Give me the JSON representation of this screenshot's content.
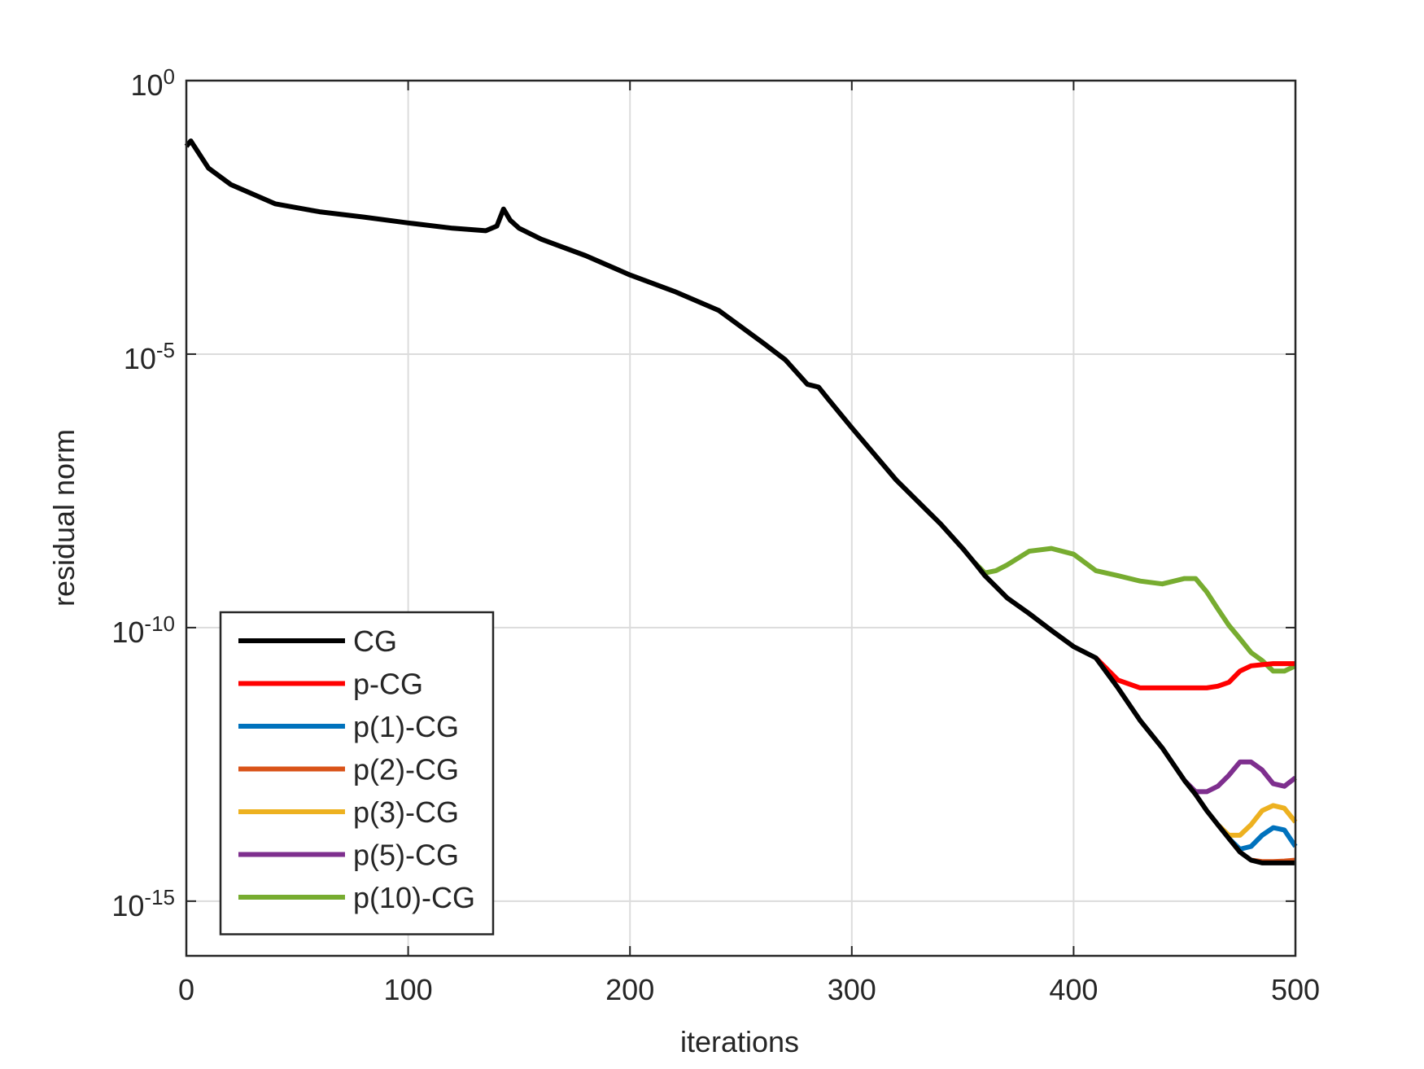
{
  "chart_data": {
    "type": "line",
    "xlabel": "iterations",
    "ylabel": "residual norm",
    "yscale": "log",
    "grid": true,
    "legend_loc": "lower left",
    "xlim": [
      0,
      500
    ],
    "xticks": [
      0,
      100,
      200,
      300,
      400,
      500
    ],
    "ylim": [
      1e-16,
      1
    ],
    "yticks": [
      {
        "value": 1e-15,
        "label": "10^-15"
      },
      {
        "value": 1e-10,
        "label": "10^-10"
      },
      {
        "value": 1e-05,
        "label": "10^-5"
      },
      {
        "value": 1,
        "label": "10^0"
      }
    ],
    "x": [
      0,
      2,
      10,
      20,
      40,
      60,
      80,
      100,
      120,
      135,
      140,
      143,
      146,
      150,
      160,
      180,
      200,
      220,
      240,
      260,
      270,
      280,
      285,
      290,
      300,
      320,
      340,
      350,
      355,
      360,
      365,
      370,
      380,
      390,
      400,
      410,
      420,
      430,
      440,
      450,
      455,
      460,
      465,
      470,
      475,
      480,
      485,
      490,
      495,
      500
    ],
    "series": [
      {
        "name": "CG",
        "color": "#000000",
        "values": [
          0.063,
          0.079,
          0.025,
          0.0126,
          0.0056,
          0.004,
          0.0032,
          0.0025,
          0.002,
          0.0018,
          0.0022,
          0.0045,
          0.0028,
          0.002,
          0.00126,
          0.00063,
          0.00028,
          0.00014,
          6.3e-05,
          1.6e-05,
          7.9e-06,
          2.8e-06,
          2.5e-06,
          1.4e-06,
          4.5e-07,
          5e-08,
          7.9e-09,
          2.8e-09,
          1.6e-09,
          8.9e-10,
          5.6e-10,
          3.5e-10,
          1.8e-10,
          8.9e-11,
          4.5e-11,
          2.8e-11,
          7.9e-12,
          2e-12,
          6.3e-13,
          1.6e-13,
          8.9e-14,
          4.5e-14,
          2.5e-14,
          1.4e-14,
          7.9e-15,
          5.6e-15,
          5e-15,
          5e-15,
          5e-15,
          5e-15
        ]
      },
      {
        "name": "p-CG",
        "color": "#ff0000",
        "values": [
          null,
          null,
          null,
          null,
          null,
          null,
          null,
          null,
          null,
          null,
          null,
          null,
          null,
          null,
          null,
          null,
          null,
          null,
          null,
          null,
          null,
          null,
          null,
          null,
          null,
          null,
          null,
          null,
          null,
          null,
          null,
          null,
          null,
          null,
          null,
          2.8e-11,
          1.1e-11,
          7.9e-12,
          7.9e-12,
          7.9e-12,
          7.9e-12,
          7.9e-12,
          8.5e-12,
          1e-11,
          1.6e-11,
          2e-11,
          2.1e-11,
          2.2e-11,
          2.2e-11,
          2.2e-11
        ]
      },
      {
        "name": "p(1)-CG",
        "color": "#0072bd",
        "values": [
          null,
          null,
          null,
          null,
          null,
          null,
          null,
          null,
          null,
          null,
          null,
          null,
          null,
          null,
          null,
          null,
          null,
          null,
          null,
          null,
          null,
          null,
          null,
          null,
          null,
          null,
          null,
          null,
          null,
          null,
          null,
          null,
          null,
          null,
          null,
          null,
          null,
          null,
          null,
          null,
          null,
          null,
          null,
          1.4e-14,
          8.9e-15,
          1e-14,
          1.6e-14,
          2.2e-14,
          2e-14,
          1e-14
        ]
      },
      {
        "name": "p(2)-CG",
        "color": "#d95319",
        "values": [
          null,
          null,
          null,
          null,
          null,
          null,
          null,
          null,
          null,
          null,
          null,
          null,
          null,
          null,
          null,
          null,
          null,
          null,
          null,
          null,
          null,
          null,
          null,
          null,
          null,
          null,
          null,
          null,
          null,
          null,
          null,
          null,
          null,
          null,
          null,
          null,
          null,
          null,
          null,
          null,
          null,
          null,
          null,
          null,
          null,
          5.6e-15,
          5.3e-15,
          5.3e-15,
          5.4e-15,
          5.6e-15
        ]
      },
      {
        "name": "p(3)-CG",
        "color": "#edb120",
        "values": [
          null,
          null,
          null,
          null,
          null,
          null,
          null,
          null,
          null,
          null,
          null,
          null,
          null,
          null,
          null,
          null,
          null,
          null,
          null,
          null,
          null,
          null,
          null,
          null,
          null,
          null,
          null,
          null,
          null,
          null,
          null,
          null,
          null,
          null,
          null,
          null,
          null,
          null,
          null,
          null,
          null,
          null,
          2.5e-14,
          1.6e-14,
          1.6e-14,
          2.5e-14,
          4.5e-14,
          5.6e-14,
          5e-14,
          2.8e-14
        ]
      },
      {
        "name": "p(5)-CG",
        "color": "#7e2f8e",
        "values": [
          null,
          null,
          null,
          null,
          null,
          null,
          null,
          null,
          null,
          null,
          null,
          null,
          null,
          null,
          null,
          null,
          null,
          null,
          null,
          null,
          null,
          null,
          null,
          null,
          null,
          null,
          null,
          null,
          null,
          null,
          null,
          null,
          null,
          null,
          null,
          null,
          null,
          null,
          null,
          1.6e-13,
          1e-13,
          1e-13,
          1.26e-13,
          2e-13,
          3.5e-13,
          3.5e-13,
          2.5e-13,
          1.4e-13,
          1.26e-13,
          1.8e-13
        ]
      },
      {
        "name": "p(10)-CG",
        "color": "#77ac30",
        "values": [
          null,
          null,
          null,
          null,
          null,
          null,
          null,
          null,
          null,
          null,
          null,
          null,
          null,
          null,
          null,
          null,
          null,
          null,
          null,
          null,
          null,
          null,
          null,
          null,
          null,
          null,
          null,
          null,
          1.6e-09,
          1e-09,
          1.1e-09,
          1.4e-09,
          2.5e-09,
          2.8e-09,
          2.2e-09,
          1.1e-09,
          8.9e-10,
          7.1e-10,
          6.3e-10,
          7.9e-10,
          7.9e-10,
          4.5e-10,
          2.2e-10,
          1.1e-10,
          6.3e-11,
          3.5e-11,
          2.5e-11,
          1.6e-11,
          1.6e-11,
          2e-11
        ]
      }
    ]
  }
}
